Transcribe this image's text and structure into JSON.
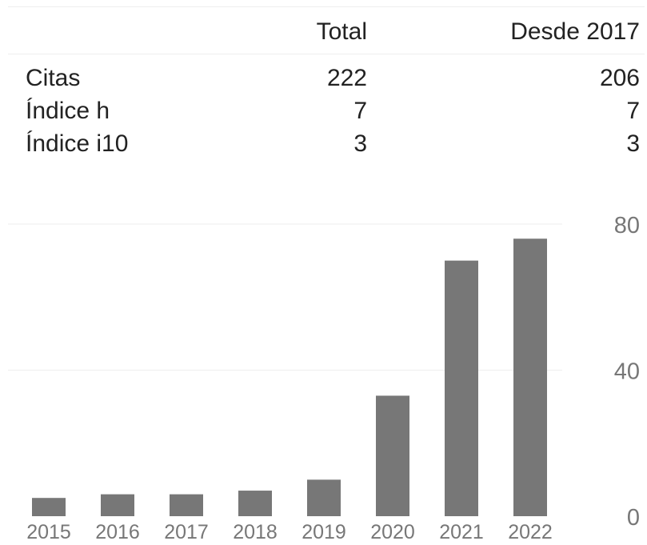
{
  "stats": {
    "headers": [
      "",
      "Total",
      "Desde 2017"
    ],
    "rows": [
      {
        "label": "Citas",
        "total": "222",
        "since": "206"
      },
      {
        "label": "Índice h",
        "total": "7",
        "since": "7"
      },
      {
        "label": "Índice i10",
        "total": "3",
        "since": "3"
      }
    ]
  },
  "chart_data": {
    "type": "bar",
    "categories": [
      "2015",
      "2016",
      "2017",
      "2018",
      "2019",
      "2020",
      "2021",
      "2022"
    ],
    "values": [
      5,
      6,
      6,
      7,
      10,
      33,
      70,
      76
    ],
    "y_ticks": [
      "0",
      "40",
      "80"
    ],
    "ylim": [
      0,
      80
    ],
    "grid": true,
    "y_axis_side": "right",
    "colors": {
      "bar": "#777777",
      "grid": "#eeeeee",
      "tick_text": "#777777"
    }
  }
}
